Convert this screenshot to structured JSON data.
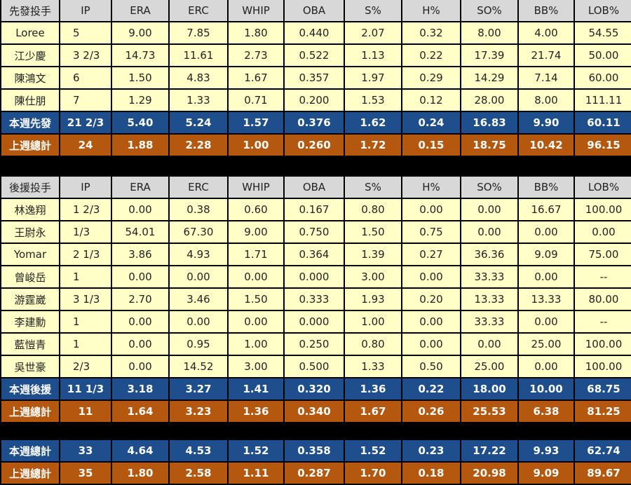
{
  "columns": [
    "IP",
    "ERA",
    "ERC",
    "WHIP",
    "OBA",
    "S%",
    "H%",
    "SO%",
    "BB%",
    "LOB%"
  ],
  "starters": {
    "header": "先發投手",
    "rows": [
      {
        "name": "Loree",
        "vals": [
          "5",
          "9.00",
          "7.85",
          "1.80",
          "0.440",
          "2.07",
          "0.32",
          "8.00",
          "4.00",
          "54.55"
        ]
      },
      {
        "name": "江少慶",
        "vals": [
          "3 2/3",
          "14.73",
          "11.61",
          "2.73",
          "0.522",
          "1.13",
          "0.22",
          "17.39",
          "21.74",
          "50.00"
        ]
      },
      {
        "name": "陳鴻文",
        "vals": [
          "6",
          "1.50",
          "4.83",
          "1.67",
          "0.357",
          "1.97",
          "0.29",
          "14.29",
          "7.14",
          "60.00"
        ]
      },
      {
        "name": "陳仕朋",
        "vals": [
          "7",
          "1.29",
          "1.33",
          "0.71",
          "0.200",
          "1.53",
          "0.12",
          "28.00",
          "8.00",
          "111.11"
        ]
      }
    ],
    "week": {
      "name": "本週先發",
      "vals": [
        "21 2/3",
        "5.40",
        "5.24",
        "1.57",
        "0.376",
        "1.62",
        "0.24",
        "16.83",
        "9.90",
        "60.11"
      ]
    },
    "last": {
      "name": "上週總計",
      "vals": [
        "24",
        "1.88",
        "2.28",
        "1.00",
        "0.260",
        "1.72",
        "0.15",
        "18.75",
        "10.42",
        "96.15"
      ]
    }
  },
  "relievers": {
    "header": "後援投手",
    "rows": [
      {
        "name": "林逸翔",
        "vals": [
          "1 2/3",
          "0.00",
          "0.38",
          "0.60",
          "0.167",
          "0.80",
          "0.00",
          "0.00",
          "16.67",
          "100.00"
        ]
      },
      {
        "name": "王尉永",
        "vals": [
          "1/3",
          "54.01",
          "67.30",
          "9.00",
          "0.750",
          "1.50",
          "0.75",
          "0.00",
          "0.00",
          "0.00"
        ]
      },
      {
        "name": "Yomar",
        "vals": [
          "2 1/3",
          "3.86",
          "4.93",
          "1.71",
          "0.364",
          "1.39",
          "0.27",
          "36.36",
          "9.09",
          "75.00"
        ]
      },
      {
        "name": "曾峻岳",
        "vals": [
          "1",
          "0.00",
          "0.00",
          "0.00",
          "0.000",
          "3.00",
          "0.00",
          "33.33",
          "0.00",
          "--"
        ]
      },
      {
        "name": "游霆崴",
        "vals": [
          "3 1/3",
          "2.70",
          "3.46",
          "1.50",
          "0.333",
          "1.93",
          "0.20",
          "13.33",
          "13.33",
          "80.00"
        ]
      },
      {
        "name": "李建勳",
        "vals": [
          "1",
          "0.00",
          "0.00",
          "0.00",
          "0.000",
          "1.00",
          "0.00",
          "33.33",
          "0.00",
          "--"
        ]
      },
      {
        "name": "藍愷青",
        "vals": [
          "1",
          "0.00",
          "0.95",
          "1.00",
          "0.250",
          "0.80",
          "0.00",
          "0.00",
          "25.00",
          "100.00"
        ]
      },
      {
        "name": "吳世豪",
        "vals": [
          "2/3",
          "0.00",
          "14.52",
          "3.00",
          "0.500",
          "1.33",
          "0.50",
          "25.00",
          "0.00",
          "100.00"
        ]
      }
    ],
    "week": {
      "name": "本週後援",
      "vals": [
        "11 1/3",
        "3.18",
        "3.27",
        "1.41",
        "0.320",
        "1.36",
        "0.22",
        "18.00",
        "10.00",
        "68.75"
      ]
    },
    "last": {
      "name": "上週總計",
      "vals": [
        "11",
        "1.64",
        "3.23",
        "1.36",
        "0.340",
        "1.67",
        "0.26",
        "25.53",
        "6.38",
        "81.25"
      ]
    }
  },
  "totals": {
    "week": {
      "name": "本週總計",
      "vals": [
        "33",
        "4.64",
        "4.53",
        "1.52",
        "0.358",
        "1.52",
        "0.23",
        "17.22",
        "9.93",
        "62.74"
      ]
    },
    "last": {
      "name": "上週總計",
      "vals": [
        "35",
        "1.80",
        "2.58",
        "1.11",
        "0.287",
        "1.70",
        "0.18",
        "20.98",
        "9.09",
        "89.67"
      ]
    }
  },
  "colors": {
    "header_bg": "#d8d8d8",
    "row_bg": "#ffffc8",
    "week_bg": "#1f4e8c",
    "last_bg": "#b5580f",
    "separator": "#000000"
  }
}
